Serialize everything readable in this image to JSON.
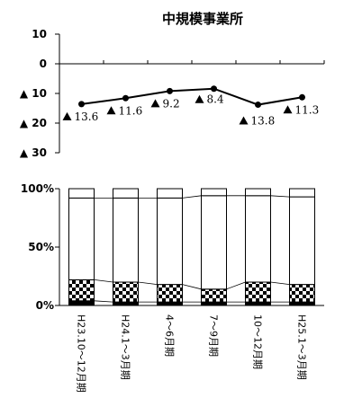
{
  "chart_data": [
    {
      "type": "line",
      "title": "中規模事業所",
      "x": [
        "H23.10～12月期",
        "H24.1～3月期",
        "4～6月期",
        "7～9月期",
        "10～12月期",
        "H25.1～3月期"
      ],
      "values": [
        -13.6,
        -11.6,
        -9.2,
        -8.4,
        -13.8,
        -11.3
      ],
      "data_labels": [
        "13.6",
        "11.6",
        "9.2",
        "8.4",
        "13.8",
        "11.3"
      ],
      "yticks": [
        10,
        0,
        -10,
        -20,
        -30
      ],
      "ytick_labels": [
        "10",
        "0",
        "▲ 10",
        "▲ 20",
        "▲ 30"
      ],
      "ylim": [
        -30,
        10
      ],
      "grid": false,
      "point_marker_color": "#000000"
    },
    {
      "type": "bar",
      "stacked": true,
      "percent": true,
      "categories": [
        "H23.10～12月期",
        "H24.1～3月期",
        "4～6月期",
        "7～9月期",
        "10～12月期",
        "H25.1～3月期"
      ],
      "series": [
        {
          "values": [
            4,
            3,
            3,
            3,
            3,
            3
          ],
          "fill": "black"
        },
        {
          "values": [
            18,
            17,
            15,
            11,
            17,
            15
          ],
          "fill": "checker"
        },
        {
          "values": [
            70,
            72,
            74,
            80,
            74,
            75
          ],
          "fill": "white"
        },
        {
          "values": [
            8,
            8,
            8,
            6,
            6,
            7
          ],
          "fill": "white"
        }
      ],
      "yticks": [
        0,
        50,
        100
      ],
      "ytick_labels": [
        "0%",
        "50%",
        "100%"
      ],
      "ylim": [
        0,
        100
      ]
    }
  ]
}
